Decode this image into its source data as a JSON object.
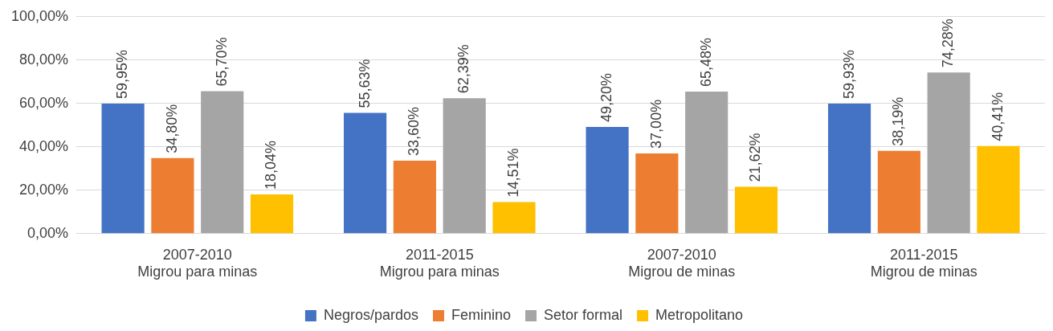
{
  "chart_data": {
    "type": "bar",
    "categories": [
      "2007-2010\nMigrou para minas",
      "2011-2015\nMigrou para minas",
      "2007-2010\nMigrou de minas",
      "2011-2015\nMigrou de minas"
    ],
    "series": [
      {
        "name": "Negros/pardos",
        "color": "#4472c4",
        "values": [
          59.95,
          55.63,
          49.2,
          59.93
        ],
        "value_labels": [
          "59,95%",
          "55,63%",
          "49,20%",
          "59,93%"
        ]
      },
      {
        "name": "Feminino",
        "color": "#ed7d31",
        "values": [
          34.8,
          33.6,
          37.0,
          38.19
        ],
        "value_labels": [
          "34,80%",
          "33,60%",
          "37,00%",
          "38,19%"
        ]
      },
      {
        "name": "Setor formal",
        "color": "#a5a5a5",
        "values": [
          65.7,
          62.39,
          65.48,
          74.28
        ],
        "value_labels": [
          "65,70%",
          "62,39%",
          "65,48%",
          "74,28%"
        ]
      },
      {
        "name": "Metropolitano",
        "color": "#ffc000",
        "values": [
          18.04,
          14.51,
          21.62,
          40.41
        ],
        "value_labels": [
          "18,04%",
          "14,51%",
          "21,62%",
          "40,41%"
        ]
      }
    ],
    "ylim": [
      0,
      100
    ],
    "yticks": [
      {
        "value": 0,
        "label": "0,00%"
      },
      {
        "value": 20,
        "label": "20,00%"
      },
      {
        "value": 40,
        "label": "40,00%"
      },
      {
        "value": 60,
        "label": "60,00%"
      },
      {
        "value": 80,
        "label": "80,00%"
      },
      {
        "value": 100,
        "label": "100,00%"
      }
    ],
    "grid": "y",
    "legend": "bottom"
  }
}
